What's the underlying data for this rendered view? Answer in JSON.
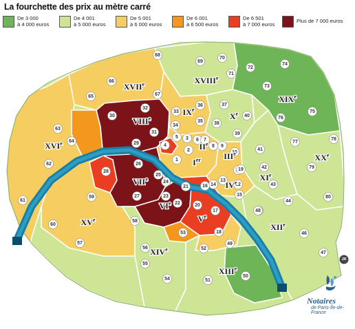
{
  "title": "La fourchette des prix au mètre carré",
  "legend": [
    {
      "line1": "De 3 000",
      "line2": "à 4 000 euros",
      "color": "#6db557"
    },
    {
      "line1": "De 4 001",
      "line2": "à 5 000 euros",
      "color": "#cde595"
    },
    {
      "line1": "De 5 001",
      "line2": "à 6 000 euros",
      "color": "#f5cd61"
    },
    {
      "line1": "De 6 001",
      "line2": "à 6 500 euros",
      "color": "#f4981d"
    },
    {
      "line1": "De 6 501",
      "line2": "à 7 000 euros",
      "color": "#ea3e22"
    },
    {
      "line1": "Plus de 7 000 euros",
      "line2": "",
      "color": "#7c1318"
    }
  ],
  "arrondissements": {
    "i": {
      "num": "I",
      "sup": "er"
    },
    "ii": {
      "num": "II",
      "sup": "e"
    },
    "iii": {
      "num": "III",
      "sup": "e"
    },
    "iv": {
      "num": "IV",
      "sup": "e"
    },
    "v": {
      "num": "V",
      "sup": "e"
    },
    "vi": {
      "num": "VI",
      "sup": "e"
    },
    "vii": {
      "num": "VII",
      "sup": "e"
    },
    "viii": {
      "num": "VIII",
      "sup": "e"
    },
    "ix": {
      "num": "IX",
      "sup": "e"
    },
    "x": {
      "num": "X",
      "sup": "e"
    },
    "xi": {
      "num": "XI",
      "sup": "e"
    },
    "xii": {
      "num": "XII",
      "sup": "e"
    },
    "xiii": {
      "num": "XIII",
      "sup": "e"
    },
    "xiv": {
      "num": "XIV",
      "sup": "e"
    },
    "xv": {
      "num": "XV",
      "sup": "e"
    },
    "xvi": {
      "num": "XVI",
      "sup": "e"
    },
    "xvii": {
      "num": "XVII",
      "sup": "e"
    },
    "xviii": {
      "num": "XVIII",
      "sup": "e"
    },
    "xix": {
      "num": "XIX",
      "sup": "e"
    },
    "xx": {
      "num": "XX",
      "sup": "e"
    }
  },
  "districts": [
    "1",
    "2",
    "3",
    "4",
    "5",
    "6",
    "7",
    "8",
    "9",
    "10",
    "11",
    "12",
    "13",
    "14",
    "15",
    "16",
    "17",
    "18",
    "19",
    "20",
    "21",
    "22",
    "23",
    "24",
    "25",
    "26",
    "27",
    "28",
    "29",
    "30",
    "31",
    "32",
    "33",
    "34",
    "35",
    "36",
    "37",
    "38",
    "39",
    "40",
    "41",
    "42",
    "43",
    "44",
    "45",
    "46",
    "47",
    "48",
    "49",
    "50",
    "51",
    "52",
    "53",
    "54",
    "55",
    "56",
    "57",
    "58",
    "59",
    "60",
    "61",
    "62",
    "63",
    "64",
    "65",
    "66",
    "67",
    "68",
    "69",
    "70",
    "71",
    "72",
    "73",
    "74",
    "75",
    "76",
    "77",
    "78",
    "79",
    "80"
  ],
  "badge": "JR",
  "logo": {
    "name": "Notaires",
    "sub": "de Paris-Île-de-France"
  }
}
